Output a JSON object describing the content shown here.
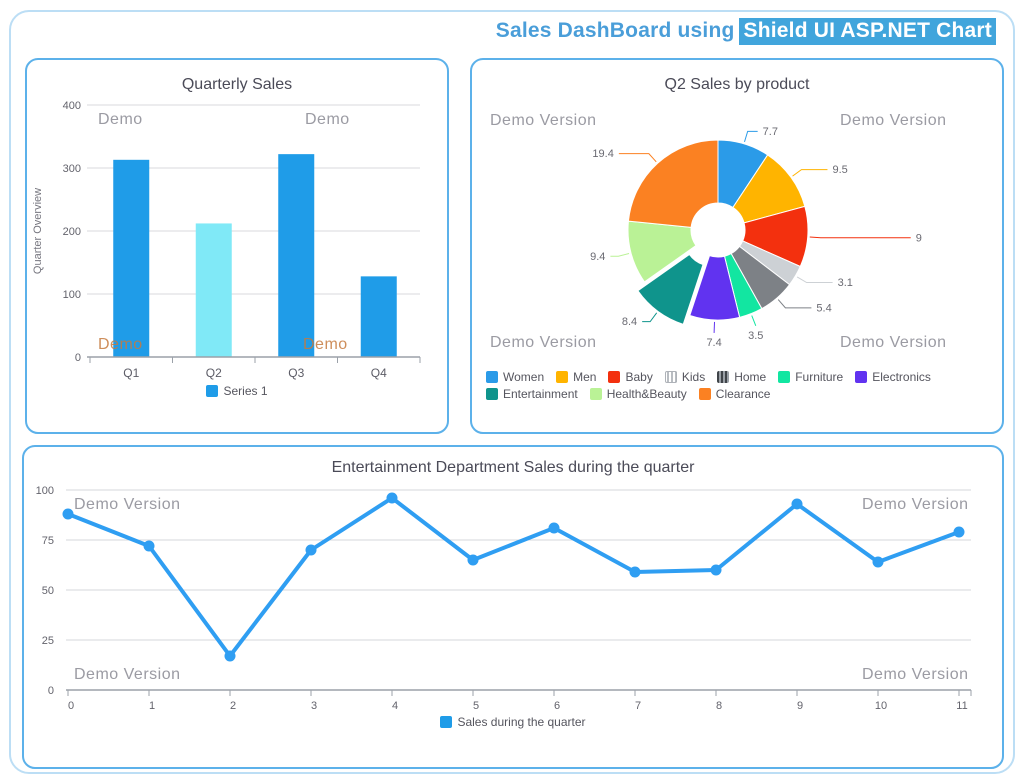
{
  "header": {
    "title_plain": "Sales DashBoard using",
    "title_highlight": "Shield UI ASP.NET Chart"
  },
  "watermark": {
    "demo": "Demo",
    "demo_version": "Demo Version"
  },
  "colors": {
    "title_blue": "#4a9ed9",
    "highlight_bg": "#41a5dc",
    "card_border": "#5cb1ea",
    "page_border": "#bcdef5",
    "bar_blue": "#1f9ce8",
    "bar_cyan": "#80e9f7",
    "line_blue": "#2f9ef2",
    "grid_gray": "#d6d7db",
    "axis_gray": "#9ba1a9"
  },
  "chart_data": [
    {
      "id": "bar",
      "type": "bar",
      "title": "Quarterly Sales",
      "xlabel": "",
      "ylabel": "Quarter Overview",
      "categories": [
        "Q1",
        "Q2",
        "Q3",
        "Q4"
      ],
      "values": [
        313,
        212,
        322,
        128
      ],
      "bar_colors": [
        "#1f9ce8",
        "#80e9f7",
        "#1f9ce8",
        "#1f9ce8"
      ],
      "ylim": [
        0,
        400
      ],
      "yticks": [
        0,
        100,
        200,
        300,
        400
      ],
      "grid": true,
      "legend_position": "bottom",
      "legend": [
        {
          "label": "Series 1",
          "color": "#1f9ce8"
        }
      ]
    },
    {
      "id": "pie",
      "type": "pie",
      "title": "Q2 Sales by product",
      "donut": true,
      "legend_position": "bottom",
      "series": [
        {
          "label": "Women",
          "value": 7.7,
          "color": "#2b9be8"
        },
        {
          "label": "Men",
          "value": 9.5,
          "color": "#ffb400"
        },
        {
          "label": "Baby",
          "value": 9,
          "color": "#f3300e"
        },
        {
          "label": "Kids",
          "value": 3.1,
          "color": "#cdd1d5",
          "pattern": "stripe-light"
        },
        {
          "label": "Home",
          "value": 5.4,
          "color": "#7d8186",
          "pattern": "stripe-dark"
        },
        {
          "label": "Furniture",
          "value": 3.5,
          "color": "#12e6a1"
        },
        {
          "label": "Electronics",
          "value": 7.4,
          "color": "#6133f0"
        },
        {
          "label": "Entertainment",
          "value": 8.4,
          "color": "#0f948c",
          "exploded": true
        },
        {
          "label": "Health&Beauty",
          "value": 9.4,
          "color": "#baf296"
        },
        {
          "label": "Clearance",
          "value": 19.4,
          "color": "#fb8122"
        }
      ]
    },
    {
      "id": "line",
      "type": "line",
      "title": "Entertainment Department Sales during the quarter",
      "xlabel": "",
      "ylabel": "",
      "x": [
        0,
        1,
        2,
        3,
        4,
        5,
        6,
        7,
        8,
        9,
        10,
        11
      ],
      "values": [
        88,
        72,
        17,
        70,
        96,
        65,
        81,
        59,
        60,
        93,
        64,
        79
      ],
      "ylim": [
        0,
        100
      ],
      "yticks": [
        0,
        25,
        50,
        75,
        100
      ],
      "line_color": "#2f9ef2",
      "grid": true,
      "legend_position": "bottom",
      "legend": [
        {
          "label": "Sales during the quarter",
          "color": "#1f9ce8"
        }
      ]
    }
  ]
}
